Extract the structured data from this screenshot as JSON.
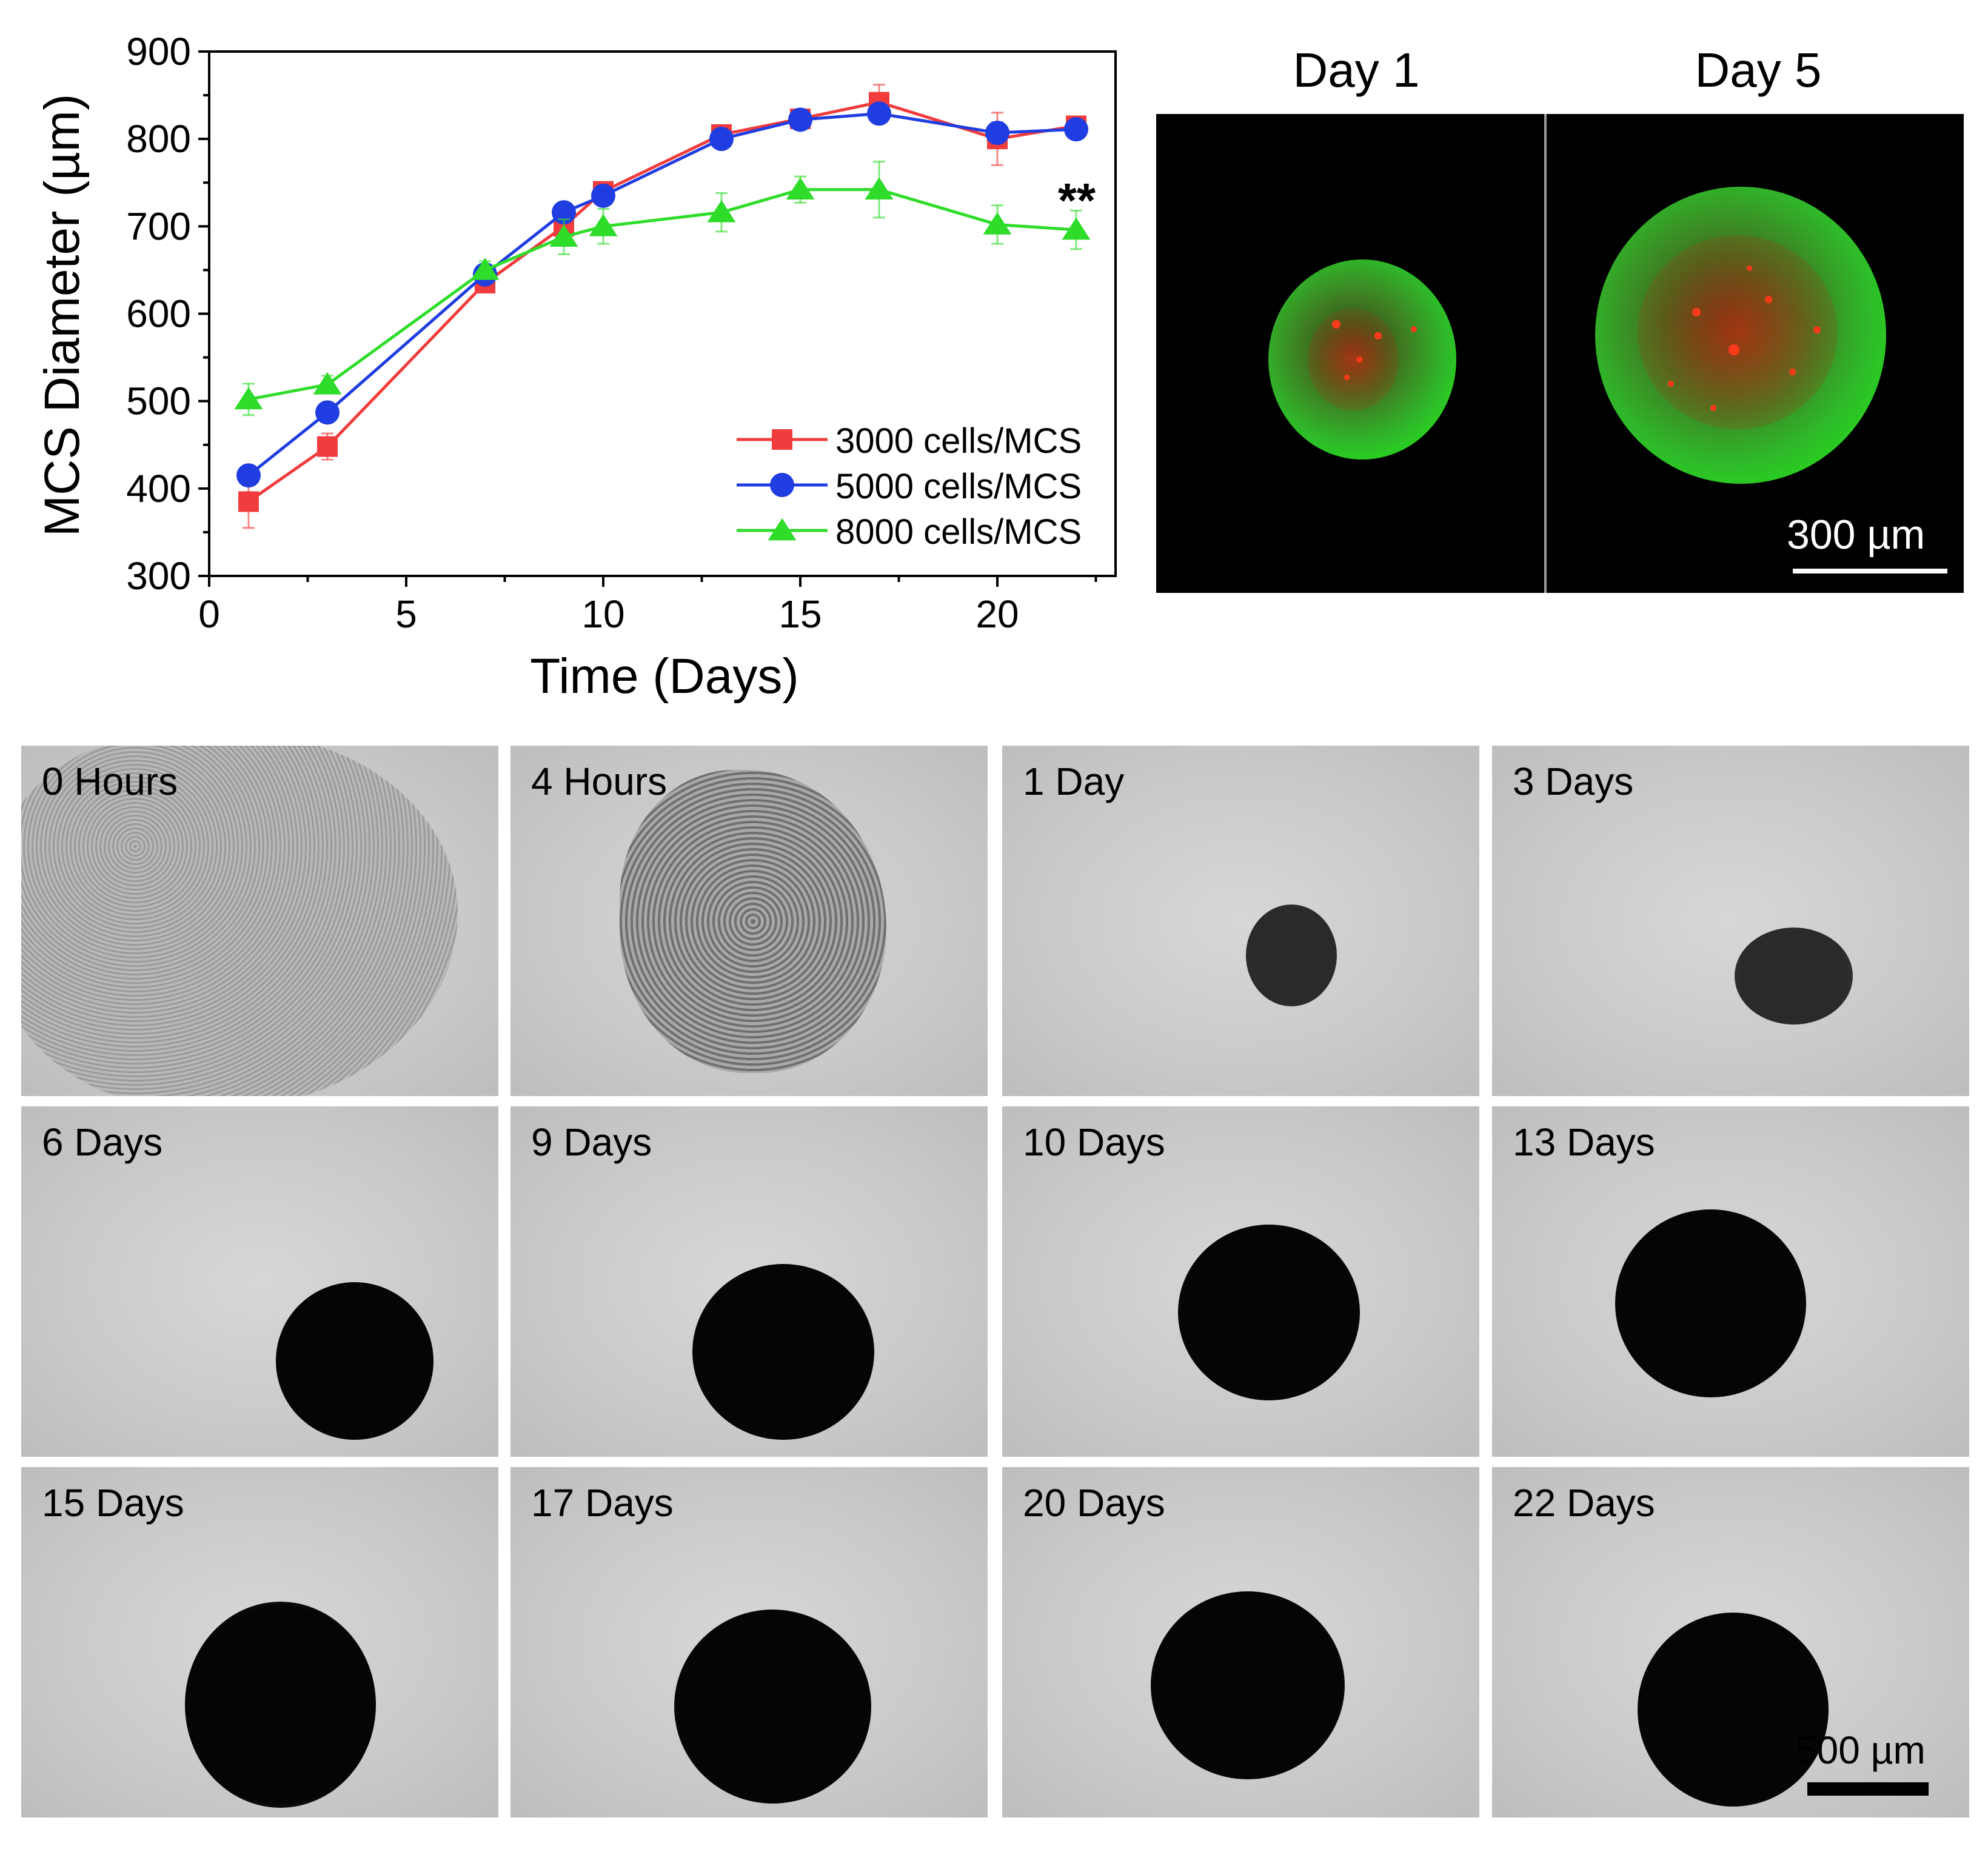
{
  "chart_data": {
    "type": "line",
    "xlabel": "Time (Days)",
    "ylabel": "MCS Diameter (µm)",
    "xlim": [
      0,
      23
    ],
    "ylim": [
      300,
      900
    ],
    "xticks": [
      0,
      5,
      10,
      15,
      20
    ],
    "yticks": [
      300,
      400,
      500,
      600,
      700,
      800,
      900
    ],
    "legend_position": "bottom-right",
    "annotation": "**",
    "series": [
      {
        "name": "3000 cells/MCS",
        "color": "#f03c3c",
        "marker": "square",
        "x": [
          1,
          3,
          7,
          9,
          10,
          13,
          15,
          17,
          20,
          22
        ],
        "y": [
          385,
          448,
          635,
          700,
          740,
          805,
          823,
          842,
          800,
          815
        ],
        "err": [
          30,
          15,
          8,
          12,
          10,
          8,
          8,
          20,
          30,
          10
        ]
      },
      {
        "name": "5000 cells/MCS",
        "color": "#1f3de0",
        "marker": "circle",
        "x": [
          1,
          3,
          7,
          9,
          10,
          13,
          15,
          17,
          20,
          22
        ],
        "y": [
          415,
          487,
          645,
          716,
          735,
          800,
          822,
          829,
          807,
          811
        ],
        "err": [
          10,
          10,
          8,
          10,
          10,
          6,
          6,
          10,
          12,
          8
        ]
      },
      {
        "name": "8000 cells/MCS",
        "color": "#2fdc2a",
        "marker": "triangle",
        "x": [
          1,
          3,
          7,
          9,
          10,
          13,
          15,
          17,
          20,
          22
        ],
        "y": [
          502,
          519,
          650,
          688,
          700,
          716,
          742,
          742,
          702,
          696
        ],
        "err": [
          18,
          10,
          10,
          20,
          20,
          22,
          15,
          32,
          22,
          22
        ]
      }
    ]
  },
  "fluorescence": {
    "panels": [
      {
        "title": "Day 1"
      },
      {
        "title": "Day 5"
      }
    ],
    "scale_label": "300 µm"
  },
  "brightfield": {
    "panels": [
      {
        "label": "0 Hours"
      },
      {
        "label": "4 Hours"
      },
      {
        "label": "1 Day"
      },
      {
        "label": "3 Days"
      },
      {
        "label": "6 Days"
      },
      {
        "label": "9 Days"
      },
      {
        "label": "10 Days"
      },
      {
        "label": "13 Days"
      },
      {
        "label": "15 Days"
      },
      {
        "label": "17 Days"
      },
      {
        "label": "20 Days"
      },
      {
        "label": "22 Days"
      }
    ],
    "scale_label": "500 µm"
  }
}
